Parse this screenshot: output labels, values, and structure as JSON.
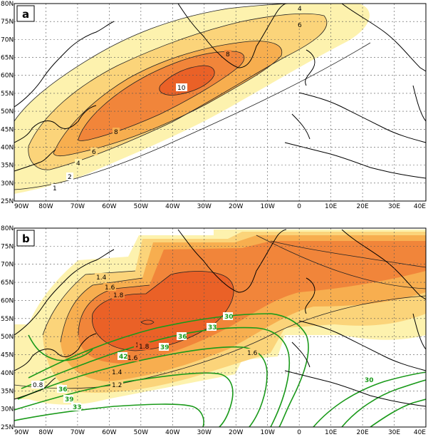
{
  "chart_data": [
    {
      "type": "contour-map",
      "panel_label": "a",
      "lon_ticks": [
        "90W",
        "80W",
        "70W",
        "60W",
        "50W",
        "40W",
        "30W",
        "20W",
        "10W",
        "0",
        "10E",
        "20E",
        "30E",
        "40E"
      ],
      "lat_ticks": [
        "25N",
        "30N",
        "35N",
        "40N",
        "45N",
        "50N",
        "55N",
        "60N",
        "65N",
        "70N",
        "75N",
        "80N"
      ],
      "contour_labels": [
        "1",
        "2",
        "4",
        "6",
        "8",
        "10",
        "8",
        "6",
        "4"
      ],
      "fill_colors": [
        "#fdf2ae",
        "#fbd47a",
        "#f7ae4f",
        "#f1853a",
        "#ea6127"
      ]
    },
    {
      "type": "contour-map",
      "panel_label": "b",
      "lon_ticks": [
        "90W",
        "80W",
        "70W",
        "60W",
        "50W",
        "40W",
        "30W",
        "20W",
        "10W",
        "0",
        "10E",
        "20E",
        "30E",
        "40E"
      ],
      "lat_ticks": [
        "25N",
        "30N",
        "35N",
        "40N",
        "45N",
        "50N",
        "55N",
        "60N",
        "65N",
        "70N",
        "75N",
        "80N"
      ],
      "contour_labels": [
        "0.8",
        "1.2",
        "1.4",
        "1.6",
        "1.8",
        "1.4",
        "1.6",
        "1.8",
        "1.8",
        "1.6"
      ],
      "green_contour_labels": [
        "30",
        "33",
        "36",
        "39",
        "42",
        "36",
        "39",
        "30",
        "33"
      ],
      "fill_colors": [
        "#fdf2ae",
        "#fbd47a",
        "#f7ae4f",
        "#f1853a",
        "#ea6127"
      ],
      "contour_line_color": "#1a9a1a"
    }
  ]
}
